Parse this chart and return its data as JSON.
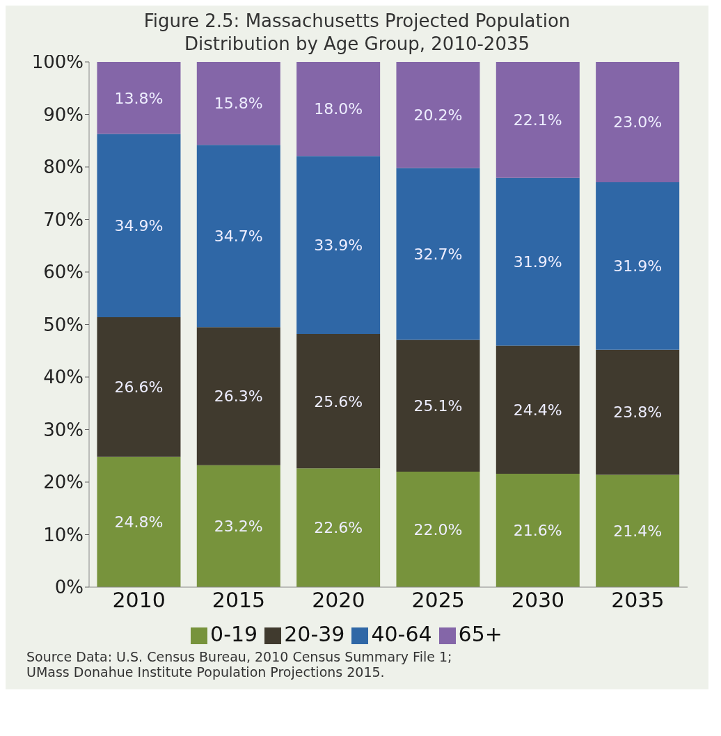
{
  "chart_data": {
    "type": "bar",
    "title": "Figure 2.5: Massachusetts Projected Population Distribution by Age Group, 2010-2035",
    "categories": [
      "2010",
      "2015",
      "2020",
      "2025",
      "2030",
      "2035"
    ],
    "series": [
      {
        "name": "0-19",
        "color": "#77933c",
        "values": [
          24.8,
          23.2,
          22.6,
          22.0,
          21.6,
          21.4
        ],
        "value_labels": [
          "24.8%",
          "23.2%",
          "22.6%",
          "22.0%",
          "21.6%",
          "21.4%"
        ]
      },
      {
        "name": "20-39",
        "color": "#403a2e",
        "values": [
          26.6,
          26.3,
          25.6,
          25.1,
          24.4,
          23.8
        ],
        "value_labels": [
          "26.6%",
          "26.3%",
          "25.6%",
          "25.1%",
          "24.4%",
          "23.8%"
        ]
      },
      {
        "name": "40-64",
        "color": "#2f67a6",
        "values": [
          34.9,
          34.7,
          33.9,
          32.7,
          31.9,
          31.9
        ],
        "value_labels": [
          "34.9%",
          "34.7%",
          "33.9%",
          "32.7%",
          "31.9%",
          "31.9%"
        ]
      },
      {
        "name": "65+",
        "color": "#8466a8",
        "values": [
          13.8,
          15.8,
          18.0,
          20.2,
          22.1,
          23.0
        ],
        "value_labels": [
          "13.8%",
          "15.8%",
          "18.0%",
          "20.2%",
          "22.1%",
          "23.0%"
        ]
      }
    ],
    "stacked": true,
    "ylim": [
      0,
      100
    ],
    "yticks": [
      {
        "value": 0,
        "label": "0%"
      },
      {
        "value": 10,
        "label": "10%"
      },
      {
        "value": 20,
        "label": "20%"
      },
      {
        "value": 30,
        "label": "30%"
      },
      {
        "value": 40,
        "label": "40%"
      },
      {
        "value": 50,
        "label": "50%"
      },
      {
        "value": 60,
        "label": "60%"
      },
      {
        "value": 70,
        "label": "70%"
      },
      {
        "value": 80,
        "label": "80%"
      },
      {
        "value": 90,
        "label": "90%"
      },
      {
        "value": 100,
        "label": "100%"
      }
    ],
    "legend": "bottom",
    "annotations": [
      "Source Data: U.S. Census Bureau, 2010 Census Summary File 1; UMass Donahue Institute Population Projections  2015."
    ]
  }
}
